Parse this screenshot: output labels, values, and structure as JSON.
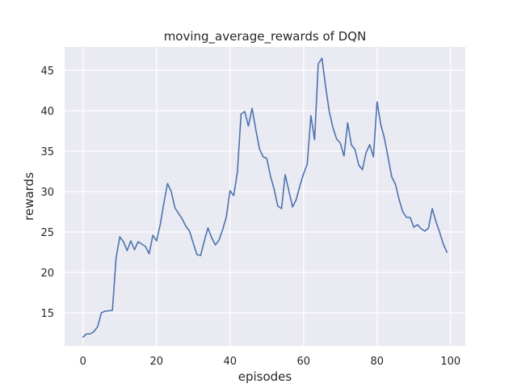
{
  "chart_data": {
    "type": "line",
    "title": "moving_average_rewards of DQN",
    "xlabel": "episodes",
    "ylabel": "rewards",
    "xlim": [
      -5,
      104
    ],
    "ylim": [
      10.9,
      47.9
    ],
    "xticks": [
      0,
      20,
      40,
      60,
      80,
      100
    ],
    "yticks": [
      15,
      20,
      25,
      30,
      35,
      40,
      45
    ],
    "grid": true,
    "background": "#eaeaf2",
    "grid_color": "#ffffff",
    "line_color": "#4c72b0",
    "x": [
      0,
      1,
      2,
      3,
      4,
      5,
      6,
      7,
      8,
      9,
      10,
      11,
      12,
      13,
      14,
      15,
      16,
      17,
      18,
      19,
      20,
      21,
      22,
      23,
      24,
      25,
      26,
      27,
      28,
      29,
      30,
      31,
      32,
      33,
      34,
      35,
      36,
      37,
      38,
      39,
      40,
      41,
      42,
      43,
      44,
      45,
      46,
      47,
      48,
      49,
      50,
      51,
      52,
      53,
      54,
      55,
      56,
      57,
      58,
      59,
      60,
      61,
      62,
      63,
      64,
      65,
      66,
      67,
      68,
      69,
      70,
      71,
      72,
      73,
      74,
      75,
      76,
      77,
      78,
      79,
      80,
      81,
      82,
      83,
      84,
      85,
      86,
      87,
      88,
      89,
      90,
      91,
      92,
      93,
      94,
      95,
      96,
      97,
      98,
      99
    ],
    "values": [
      12.0,
      12.4,
      12.4,
      12.7,
      13.3,
      15.0,
      15.2,
      15.25,
      15.3,
      21.8,
      24.4,
      23.8,
      22.7,
      23.9,
      22.8,
      23.8,
      23.5,
      23.2,
      22.3,
      24.6,
      23.9,
      25.9,
      28.6,
      31.0,
      30.0,
      28.0,
      27.3,
      26.6,
      25.7,
      25.1,
      23.6,
      22.2,
      22.1,
      23.9,
      25.5,
      24.3,
      23.4,
      24.0,
      25.3,
      26.9,
      30.1,
      29.5,
      32.4,
      39.6,
      39.9,
      38.1,
      40.3,
      37.7,
      35.3,
      34.3,
      34.1,
      31.9,
      30.3,
      28.2,
      27.9,
      32.1,
      30.1,
      28.1,
      29.0,
      30.7,
      32.2,
      33.4,
      39.4,
      36.4,
      45.8,
      46.5,
      43.0,
      39.9,
      37.9,
      36.5,
      36.0,
      34.4,
      38.5,
      35.8,
      35.2,
      33.3,
      32.7,
      34.8,
      35.8,
      34.3,
      41.1,
      38.3,
      36.6,
      34.2,
      31.8,
      30.9,
      29.0,
      27.5,
      26.8,
      26.8,
      25.6,
      25.9,
      25.4,
      25.1,
      25.5,
      27.9,
      26.3,
      25.0,
      23.5,
      22.5
    ]
  }
}
